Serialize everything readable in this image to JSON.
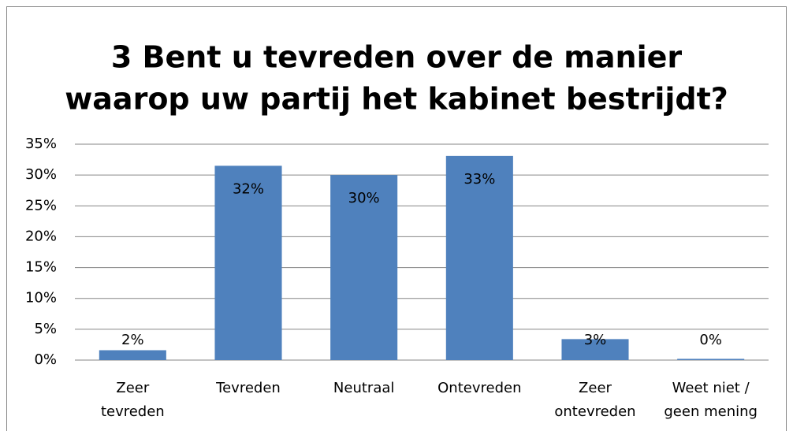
{
  "chart_data": {
    "type": "bar",
    "title": [
      "3 Bent u tevreden over de manier",
      "waarop uw partij het kabinet bestrijdt?"
    ],
    "categories": [
      [
        "Zeer",
        "tevreden"
      ],
      [
        "Tevreden"
      ],
      [
        "Neutraal"
      ],
      [
        "Ontevreden"
      ],
      [
        "Zeer",
        "ontevreden"
      ],
      [
        "Weet niet /",
        "geen mening"
      ]
    ],
    "values": [
      1.6,
      31.5,
      30,
      33.1,
      3.4,
      0.2
    ],
    "value_labels": [
      "2%",
      "32%",
      "30%",
      "33%",
      "3%",
      "0%"
    ],
    "color": "#4f81bd",
    "ylim": [
      0,
      35
    ],
    "yticks": [
      {
        "value": 0,
        "label": "0%"
      },
      {
        "value": 5,
        "label": "5%"
      },
      {
        "value": 10,
        "label": "10%"
      },
      {
        "value": 15,
        "label": "15%"
      },
      {
        "value": 20,
        "label": "20%"
      },
      {
        "value": 25,
        "label": "25%"
      },
      {
        "value": 30,
        "label": "30%"
      },
      {
        "value": 35,
        "label": "35%"
      }
    ],
    "grid": true
  }
}
